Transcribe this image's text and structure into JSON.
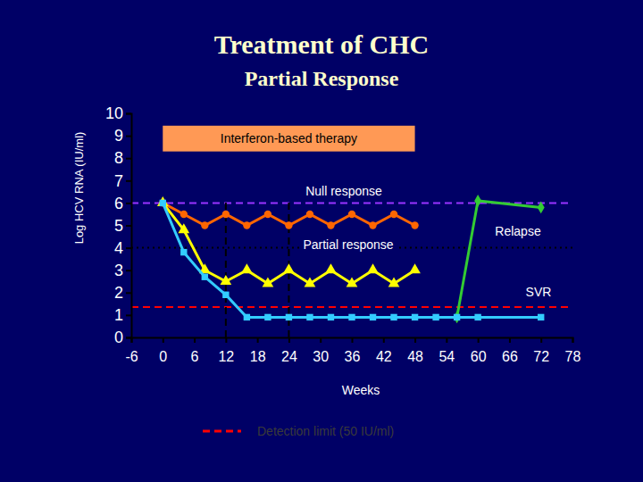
{
  "chart_data": {
    "type": "line",
    "title": "Treatment of CHC",
    "subtitle": "Partial Response",
    "x_label": "Weeks",
    "y_label": "Log HCV RNA (IU/ml)",
    "x": [
      0,
      4,
      8,
      12,
      16,
      20,
      24,
      28,
      32,
      36,
      40,
      44,
      48,
      52,
      56,
      60,
      72
    ],
    "xlim": [
      -6,
      78
    ],
    "xticks": [
      -6,
      0,
      6,
      12,
      18,
      24,
      30,
      36,
      42,
      48,
      54,
      60,
      66,
      72,
      78
    ],
    "ylim": [
      0,
      10
    ],
    "yticks": [
      0,
      1,
      2,
      3,
      4,
      5,
      6,
      7,
      8,
      9,
      10
    ],
    "grid": false,
    "series": [
      {
        "name": "Null response",
        "color": "#ff6600",
        "marker": "circle",
        "line_style": "solid",
        "values": [
          6,
          5.5,
          5,
          5.5,
          5,
          5.5,
          5,
          5.5,
          5,
          5.5,
          5,
          5.5,
          5,
          null,
          null,
          null,
          null
        ]
      },
      {
        "name": "Partial response",
        "color": "#ffff00",
        "marker": "triangle",
        "line_style": "solid",
        "values": [
          6,
          4.8,
          3,
          2.5,
          3,
          2.4,
          3,
          2.4,
          3,
          2.4,
          3,
          2.4,
          3,
          null,
          null,
          null,
          null
        ]
      },
      {
        "name": "Relapse",
        "color": "#33cc33",
        "marker": "diamond",
        "line_style": "solid",
        "values": [
          null,
          null,
          null,
          null,
          null,
          null,
          null,
          null,
          null,
          null,
          null,
          null,
          null,
          null,
          0.9,
          6.1,
          5.8
        ]
      },
      {
        "name": "SVR",
        "color": "#33ccff",
        "marker": "square",
        "line_style": "solid",
        "values": [
          6,
          3.8,
          2.7,
          1.9,
          0.9,
          0.9,
          0.9,
          0.9,
          0.9,
          0.9,
          0.9,
          0.9,
          0.9,
          0.9,
          0.9,
          0.9,
          0.9
        ]
      }
    ],
    "therapy_period": {
      "label": "Interferon-based therapy",
      "start": 0,
      "end": 48,
      "ybottom": 8.3,
      "ytop": 9.45,
      "color": "#ff9955"
    },
    "reference_lines": [
      {
        "value": 6,
        "color": "#9933ff",
        "line_style": "dashed"
      },
      {
        "value": 4,
        "color": "#000000",
        "line_style": "dotted"
      },
      {
        "value": 1.35,
        "color": "#ff0000",
        "line_style": "dashed",
        "label": "Detection limit (50 IU/ml)"
      }
    ],
    "vertical_lines": [
      {
        "value": 12,
        "y_end": 6.2,
        "color": "#000000",
        "line_style": "dashed"
      },
      {
        "value": 24,
        "y_end": 6.2,
        "color": "#000000",
        "line_style": "dashed"
      }
    ]
  }
}
